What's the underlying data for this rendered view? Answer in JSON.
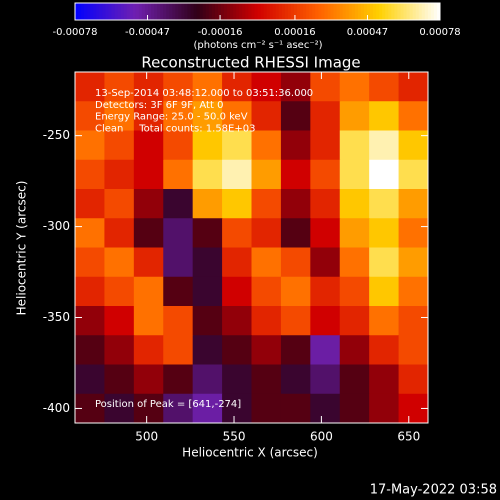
{
  "chart_data": {
    "type": "heatmap",
    "title": "Reconstructed RHESSI Image",
    "x_label": "Heliocentric X (arcsec)",
    "y_label": "Heliocentric Y (arcsec)",
    "xlim": [
      459,
      661
    ],
    "ylim": [
      -408,
      -215
    ],
    "xticks": [
      500,
      550,
      600,
      650
    ],
    "yticks": [
      -250,
      -300,
      -350,
      -400
    ],
    "colorbar": {
      "lim": [
        -0.00078,
        0.00078
      ],
      "ticks": [
        -0.00078,
        -0.00047,
        -0.00016,
        0.00016,
        0.00047,
        0.00078
      ],
      "label": "(photons cm⁻² s⁻¹ asec⁻²)"
    },
    "colormap": [
      "#0000ff",
      "#7020b0",
      "#300018",
      "#d00000",
      "#ff6000",
      "#ffd000",
      "#ffffff"
    ],
    "values": [
      [
        0.0001,
        0.0002,
        0.0001,
        0.0002,
        0.0003,
        0.0001,
        0.0,
        -0.0001,
        0.0002,
        0.0003,
        0.0002,
        0.0001
      ],
      [
        0.0002,
        0.0003,
        0.0001,
        0.0003,
        0.0004,
        0.0003,
        0.0001,
        -0.0002,
        0.0001,
        0.0004,
        0.0005,
        0.0003
      ],
      [
        0.0003,
        0.0002,
        0.0,
        0.0002,
        0.0005,
        0.0006,
        0.0003,
        -0.0001,
        0.0001,
        0.0006,
        0.0007,
        0.0005
      ],
      [
        0.0002,
        0.0001,
        0.0,
        0.0003,
        0.0006,
        0.0007,
        0.0004,
        0.0,
        0.0002,
        0.0006,
        0.00078,
        0.0006
      ],
      [
        0.0001,
        0.0002,
        -0.0001,
        -0.0003,
        0.0004,
        0.0005,
        0.0002,
        -0.0001,
        0.0001,
        0.0005,
        0.0006,
        0.0004
      ],
      [
        0.0003,
        0.0001,
        -0.0002,
        -0.0004,
        -0.0002,
        0.0002,
        0.0001,
        -0.0002,
        0.0,
        0.0004,
        0.0005,
        0.0003
      ],
      [
        0.0002,
        0.0003,
        0.0001,
        -0.0004,
        -0.0003,
        0.0001,
        0.0003,
        0.0002,
        -0.0001,
        0.0003,
        0.0006,
        0.0004
      ],
      [
        0.0001,
        0.0002,
        0.0003,
        -0.0002,
        -0.0003,
        0.0,
        0.0002,
        0.0003,
        0.0001,
        0.0002,
        0.0005,
        0.0003
      ],
      [
        -0.0001,
        0.0,
        0.0003,
        0.0002,
        -0.0002,
        -0.0001,
        0.0001,
        0.0002,
        0.0,
        0.0001,
        0.0003,
        0.0002
      ],
      [
        -0.0002,
        -0.0001,
        0.0001,
        0.0002,
        -0.0003,
        -0.0002,
        -0.0001,
        -0.0002,
        -0.0005,
        -0.0001,
        0.0001,
        0.0002
      ],
      [
        -0.0003,
        -0.0002,
        -0.0001,
        -0.0002,
        -0.0004,
        -0.0003,
        -0.0002,
        -0.0003,
        -0.0004,
        -0.0002,
        -0.0001,
        0.0001
      ],
      [
        -0.0002,
        -0.0003,
        -0.0002,
        -0.0004,
        -0.0005,
        -0.0003,
        -0.0002,
        -0.0002,
        -0.0003,
        -0.0002,
        -0.0001,
        0.0
      ]
    ],
    "annotations": [
      "13-Sep-2014 03:48:12.000 to 03:51:36.000",
      "Detectors: 3F 6F 9F, Att 0",
      "Energy Range: 25.0 - 50.0 keV",
      "Clean     Total counts: 1.58E+03"
    ],
    "peak_label": "Position of Peak = [641,-274]",
    "timestamp": "17-May-2022 03:58"
  }
}
